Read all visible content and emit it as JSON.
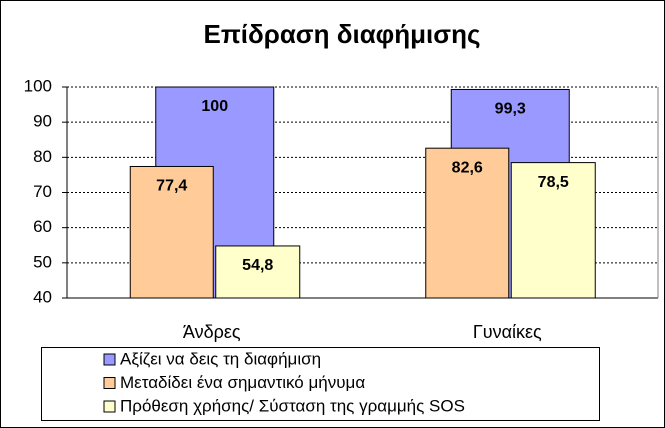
{
  "chart_data": {
    "type": "bar",
    "title": "Επίδραση διαφήμισης",
    "categories": [
      "Άνδρες",
      "Γυναίκες"
    ],
    "series": [
      {
        "name": "Αξίζει να δεις τη διαφήμιση",
        "color": "#9999ff",
        "values": [
          100,
          99.3
        ],
        "value_labels": [
          "100",
          "99,3"
        ]
      },
      {
        "name": "Μεταδίδει ένα σημαντικό μήνυμα",
        "color": "#ffcc99",
        "values": [
          77.4,
          82.6
        ],
        "value_labels": [
          "77,4",
          "82,6"
        ]
      },
      {
        "name": "Πρόθεση χρήσης/ Σύσταση της γραμμής SOS",
        "color": "#ffffcc",
        "values": [
          54.8,
          78.5
        ],
        "value_labels": [
          "54,8",
          "78,5"
        ]
      }
    ],
    "ylim": [
      40,
      100
    ],
    "yticks": [
      40,
      50,
      60,
      70,
      80,
      90,
      100
    ],
    "grid": true,
    "legend": "bottom"
  }
}
